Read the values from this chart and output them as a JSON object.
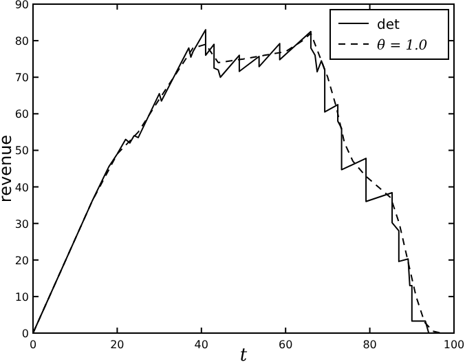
{
  "chart_data": {
    "type": "line",
    "xlabel": "t",
    "ylabel": "revenue",
    "xlim": [
      0,
      100
    ],
    "ylim": [
      0,
      90
    ],
    "xticks": [
      0,
      20,
      40,
      60,
      80,
      100
    ],
    "yticks": [
      0,
      10,
      20,
      30,
      40,
      50,
      60,
      70,
      80,
      90
    ],
    "grid": false,
    "legend": "top right",
    "series": [
      {
        "name": "det",
        "color": "#000000",
        "line_style": "solid",
        "x": [
          0,
          14,
          18,
          20,
          22,
          23,
          24,
          25,
          30,
          30.5,
          37,
          37.5,
          38,
          41,
          41,
          43,
          43,
          44,
          44.5,
          49,
          49,
          53.7,
          53.7,
          58.6,
          58.6,
          66,
          66,
          67,
          67.5,
          68.5,
          69.3,
          69.3,
          72.4,
          72.4,
          73.3,
          73.3,
          79.1,
          79.1,
          85.3,
          85.3,
          86.9,
          86.9,
          89.1,
          89.5,
          90,
          90,
          93.2,
          94
        ],
        "values": [
          0,
          36,
          45.5,
          49,
          53,
          52,
          54,
          53.5,
          65.5,
          63.5,
          78,
          75.5,
          77,
          83,
          76,
          79,
          72.5,
          72,
          70,
          76,
          71.6,
          75.7,
          72.9,
          79.2,
          74.8,
          82.5,
          78,
          76,
          71.5,
          74.5,
          72,
          60.5,
          62.5,
          58,
          56,
          44.7,
          47.8,
          36,
          38.4,
          30.2,
          28,
          19.6,
          20.3,
          13,
          13,
          3.3,
          3.3,
          0
        ]
      },
      {
        "name": "θ = 1.0",
        "color": "#000000",
        "line_style": "dashed",
        "x": [
          0,
          14,
          20,
          25,
          30,
          38,
          41,
          44,
          50,
          55,
          60,
          64,
          66,
          68,
          70,
          72,
          74,
          76,
          79,
          82,
          85,
          87,
          89,
          91,
          93,
          95,
          97
        ],
        "values": [
          0,
          36,
          49,
          55,
          64,
          78,
          79,
          74,
          75,
          76,
          77,
          80,
          82,
          76,
          70,
          62,
          52,
          47,
          43,
          40,
          37,
          30,
          20,
          10,
          3,
          0.5,
          0
        ]
      }
    ]
  }
}
